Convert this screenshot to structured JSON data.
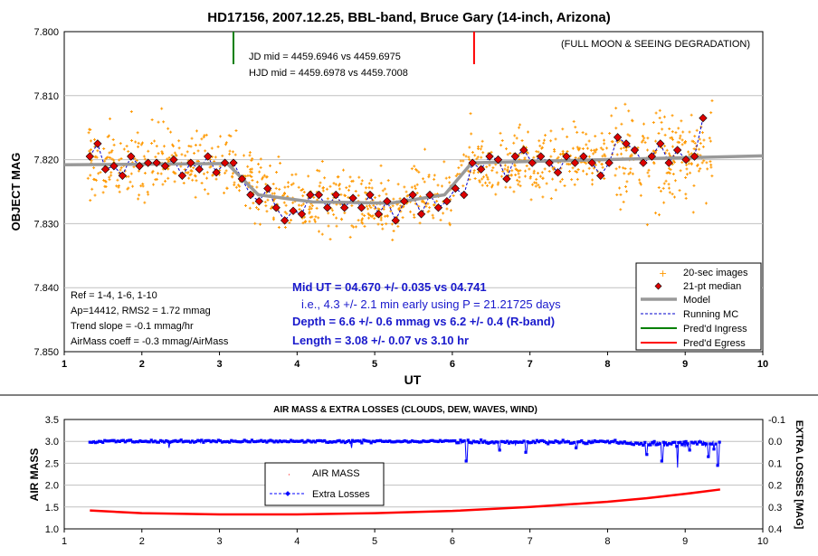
{
  "chart_data": [
    {
      "type": "scatter",
      "title": "HD17156, 2007.12.25, BBL-band, Bruce Gary (14-inch, Arizona)",
      "xlabel": "UT",
      "ylabel": "OBJECT MAG",
      "xlim": [
        1,
        10
      ],
      "ylim": [
        7.85,
        7.8
      ],
      "y_inverted": true,
      "x_ticks": [
        "1",
        "2",
        "3",
        "4",
        "5",
        "6",
        "7",
        "8",
        "9",
        "10"
      ],
      "y_ticks": [
        "7.800",
        "7.810",
        "7.820",
        "7.830",
        "7.840",
        "7.850"
      ],
      "grid": "horizontal",
      "legend_position": "bottom-right",
      "annotations": {
        "top_right": "(FULL MOON & SEEING DEGRADATION)",
        "jd": "JD mid = 4459.6946 vs 4459.6975",
        "hjd": "HJD mid = 4459.6978 vs 4459.7008",
        "ref": "Ref = 1-4, 1-6, 1-10",
        "ap": "Ap=14412, RMS2 = 1.72 mmag",
        "trend": "Trend slope = -0.1 mmag/hr",
        "airmass": "AirMass coeff = -0.3 mmag/AirMass",
        "mid": "Mid UT = 04.670 +/- 0.035 vs 04.741",
        "early": "i.e., 4.3 +/- 2.1 min early using P = 21.21725 days",
        "depth": "Depth = 6.6 +/- 0.6 mmag vs 6.2 +/- 0.4 (R-band)",
        "length": "Length = 3.08 +/- 0.07 vs 3.10 hr"
      },
      "series": [
        {
          "name": "20-sec images",
          "color": "#ff9900"
        },
        {
          "name": "21-pt median",
          "color": "#dd0000",
          "x": [
            1.33,
            1.43,
            1.53,
            1.64,
            1.75,
            1.86,
            1.97,
            2.08,
            2.19,
            2.3,
            2.41,
            2.52,
            2.63,
            2.74,
            2.85,
            2.96,
            3.07,
            3.18,
            3.29,
            3.4,
            3.51,
            3.62,
            3.73,
            3.84,
            3.95,
            4.06,
            4.17,
            4.28,
            4.39,
            4.5,
            4.61,
            4.72,
            4.83,
            4.94,
            5.05,
            5.16,
            5.27,
            5.38,
            5.49,
            5.6,
            5.71,
            5.82,
            5.93,
            6.04,
            6.15,
            6.26,
            6.37,
            6.48,
            6.59,
            6.7,
            6.81,
            6.92,
            7.03,
            7.14,
            7.25,
            7.36,
            7.47,
            7.58,
            7.69,
            7.8,
            7.91,
            8.02,
            8.13,
            8.24,
            8.35,
            8.46,
            8.57,
            8.68,
            8.79,
            8.9,
            9.01,
            9.12,
            9.23
          ],
          "y": [
            7.8195,
            7.8175,
            7.8215,
            7.821,
            7.8225,
            7.8195,
            7.821,
            7.8205,
            7.8205,
            7.821,
            7.82,
            7.8225,
            7.8205,
            7.8215,
            7.8195,
            7.822,
            7.8205,
            7.8205,
            7.823,
            7.8255,
            7.8265,
            7.8245,
            7.8275,
            7.8295,
            7.828,
            7.8285,
            7.8255,
            7.8255,
            7.8275,
            7.8255,
            7.8275,
            7.826,
            7.8275,
            7.8255,
            7.8285,
            7.8265,
            7.8295,
            7.8265,
            7.8255,
            7.8285,
            7.8255,
            7.8275,
            7.8265,
            7.8245,
            7.8255,
            7.8205,
            7.8215,
            7.8195,
            7.82,
            7.823,
            7.8195,
            7.8185,
            7.8205,
            7.8195,
            7.8205,
            7.822,
            7.8195,
            7.8205,
            7.8195,
            7.8205,
            7.8225,
            7.8205,
            7.8165,
            7.8175,
            7.8185,
            7.8205,
            7.8195,
            7.8175,
            7.8205,
            7.8185,
            7.82,
            7.8195,
            7.8135
          ]
        },
        {
          "name": "Model",
          "color": "#999999",
          "x": [
            1,
            3.1,
            3.5,
            4.2,
            5.2,
            5.9,
            6.25,
            10
          ],
          "y": [
            7.8208,
            7.8206,
            7.8255,
            7.8266,
            7.8268,
            7.8255,
            7.8205,
            7.8194
          ]
        },
        {
          "name": "Running MC",
          "color": "#0000cc"
        },
        {
          "name": "Pred'd Ingress",
          "color": "#008000",
          "x": 3.18
        },
        {
          "name": "Pred'd Egress",
          "color": "#ff0000",
          "x": 6.28
        }
      ]
    },
    {
      "type": "line",
      "title": "AIR MASS & EXTRA LOSSES (CLOUDS, DEW, WAVES, WIND)",
      "xlabel": "",
      "ylabel": "AIR MASS",
      "y2label": "EXTRA LOSSES [MAG]",
      "xlim": [
        1,
        10
      ],
      "ylim": [
        1.0,
        3.5
      ],
      "y2lim": [
        0.4,
        -0.1
      ],
      "x_ticks": [
        "1",
        "2",
        "3",
        "4",
        "5",
        "6",
        "7",
        "8",
        "9",
        "10"
      ],
      "y_ticks": [
        "1.0",
        "1.5",
        "2.0",
        "2.5",
        "3.0",
        "3.5"
      ],
      "y2_ticks": [
        "-0.1",
        "0.0",
        "0.1",
        "0.2",
        "0.3",
        "0.4"
      ],
      "grid": "horizontal",
      "legend_position": "center-left",
      "series": [
        {
          "name": "AIR MASS",
          "color": "#ff0000",
          "x": [
            1.33,
            2,
            3,
            4,
            5,
            6,
            7,
            8,
            8.5,
            9,
            9.45
          ],
          "y": [
            1.42,
            1.36,
            1.33,
            1.33,
            1.36,
            1.41,
            1.5,
            1.62,
            1.7,
            1.8,
            1.9
          ]
        },
        {
          "name": "Extra Losses",
          "color": "#0000ff",
          "dips": [
            {
              "x": 2.35,
              "y": 0.03
            },
            {
              "x": 4.7,
              "y": 0.03
            },
            {
              "x": 6.18,
              "y": 0.09
            },
            {
              "x": 6.6,
              "y": 0.04
            },
            {
              "x": 6.95,
              "y": 0.05
            },
            {
              "x": 7.6,
              "y": 0.03
            },
            {
              "x": 8.5,
              "y": 0.06
            },
            {
              "x": 8.7,
              "y": 0.09
            },
            {
              "x": 8.9,
              "y": 0.12
            },
            {
              "x": 9.05,
              "y": 0.04
            },
            {
              "x": 9.3,
              "y": 0.07
            },
            {
              "x": 9.42,
              "y": 0.11
            }
          ]
        }
      ]
    }
  ]
}
